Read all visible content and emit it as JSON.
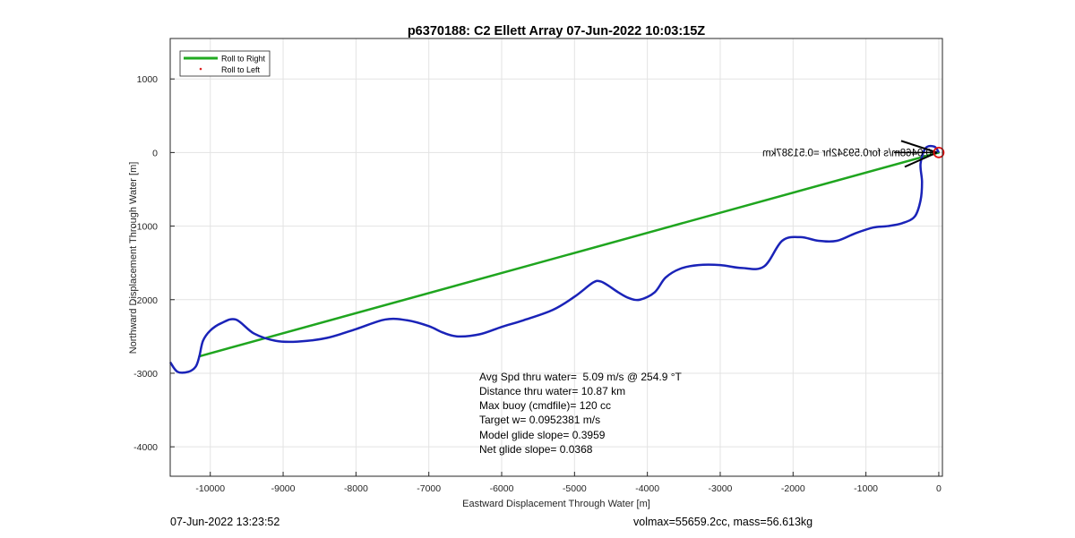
{
  "chart_data": {
    "type": "line",
    "title": "p6370188: C2 Ellett Array 07-Jun-2022 10:03:15Z",
    "xlabel": "Eastward Displacement Through Water [m]",
    "ylabel": "Northward Displacement Through Water [m]",
    "xlim": [
      -10550,
      50
    ],
    "ylim": [
      -4400,
      1550
    ],
    "xticks": [
      -10000,
      -9000,
      -8000,
      -7000,
      -6000,
      -5000,
      -4000,
      -3000,
      -2000,
      -1000,
      0
    ],
    "yticks": [
      1000,
      0,
      -1000,
      -2000,
      -3000,
      -4000
    ],
    "grid": true,
    "legend": {
      "placement": "top-left",
      "entries": [
        {
          "label": "Roll to Right",
          "color": "#22aa22",
          "style": "line"
        },
        {
          "label": "Roll to Left",
          "color": "#dd2222",
          "style": "dot"
        }
      ]
    },
    "series": [
      {
        "name": "Roll to Right",
        "color": "#1fa51f",
        "x": [
          0,
          -10150
        ],
        "y": [
          0,
          -2770
        ]
      },
      {
        "color": "#1a23b8",
        "x": [
          0,
          -60,
          -180,
          -250,
          -230,
          -250,
          -330,
          -500,
          -700,
          -900,
          -1150,
          -1400,
          -1650,
          -1900,
          -2150,
          -2400,
          -2700,
          -3000,
          -3300,
          -3550,
          -3750,
          -3900,
          -4100,
          -4250,
          -4400,
          -4550,
          -4650,
          -4750,
          -5000,
          -5300,
          -5700,
          -6000,
          -6300,
          -6600,
          -6800,
          -7000,
          -7300,
          -7600,
          -8000,
          -8400,
          -8800,
          -9100,
          -9400,
          -9650,
          -9850,
          -10000,
          -10100,
          -10150,
          -10200,
          -10300,
          -10450,
          -10550
        ],
        "y": [
          0,
          80,
          60,
          -150,
          -400,
          -650,
          -870,
          -960,
          -1000,
          -1020,
          -1100,
          -1200,
          -1200,
          -1150,
          -1200,
          -1550,
          -1570,
          -1530,
          -1530,
          -1580,
          -1700,
          -1900,
          -2000,
          -1980,
          -1900,
          -1800,
          -1750,
          -1770,
          -1960,
          -2140,
          -2280,
          -2370,
          -2470,
          -2500,
          -2450,
          -2360,
          -2280,
          -2270,
          -2400,
          -2520,
          -2570,
          -2560,
          -2460,
          -2270,
          -2320,
          -2420,
          -2560,
          -2770,
          -2910,
          -2980,
          -2980,
          -2850
        ]
      }
    ],
    "start_marker": {
      "x": 0,
      "y": 0,
      "color": "#dd1111"
    },
    "annotation_mirrored": "0.0468m/s for0.59342hr =0.51387km",
    "stats": [
      "Avg Spd thru water=  5.09 m/s @ 254.9 °T",
      "Distance thru water= 10.87 km",
      "Max buoy (cmdfile)= 120 cc",
      "Target w= 0.0952381 m/s",
      "Model glide slope= 0.3959",
      "Net glide slope= 0.0368"
    ]
  },
  "footer": {
    "timestamp": "07-Jun-2022 13:23:52",
    "vol_mass": "volmax=55659.2cc, mass=56.613kg"
  }
}
